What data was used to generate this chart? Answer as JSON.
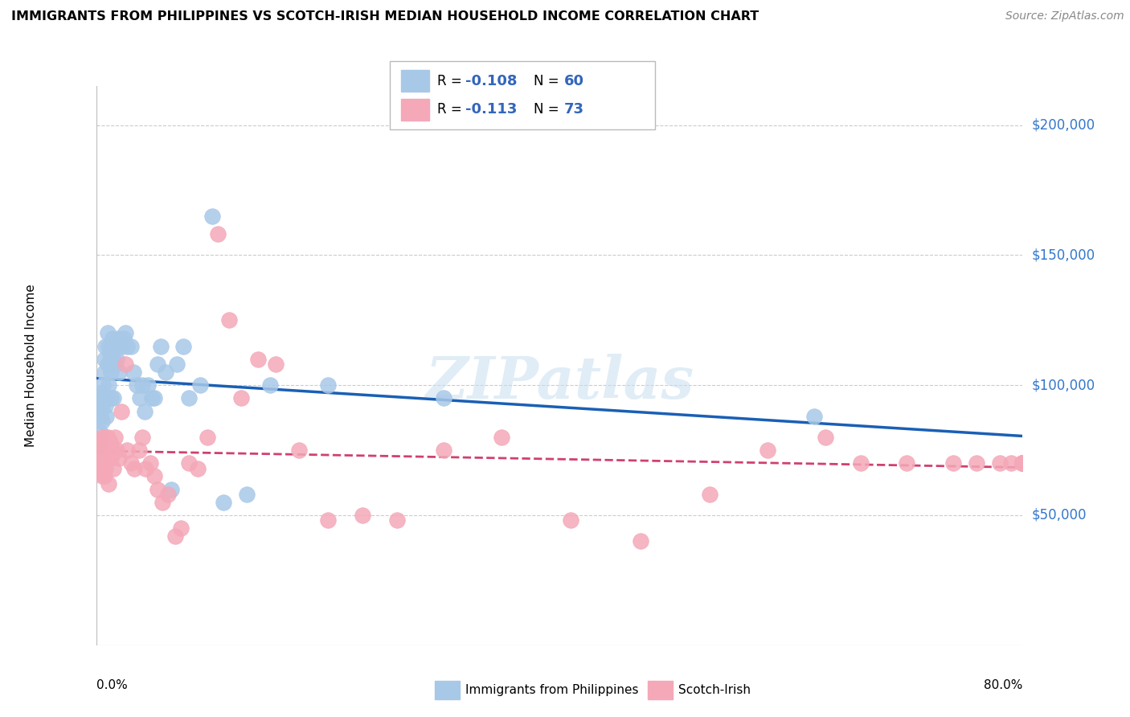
{
  "title": "IMMIGRANTS FROM PHILIPPINES VS SCOTCH-IRISH MEDIAN HOUSEHOLD INCOME CORRELATION CHART",
  "source": "Source: ZipAtlas.com",
  "ylabel": "Median Household Income",
  "xlim": [
    0.0,
    0.8
  ],
  "ylim": [
    0,
    215000
  ],
  "color_blue": "#a8c8e8",
  "color_pink": "#f4a8b8",
  "color_trend_blue": "#1a5fb5",
  "color_trend_pink": "#d04070",
  "watermark": "ZIPatlas",
  "yticks": [
    50000,
    100000,
    150000,
    200000
  ],
  "ytick_labels": [
    "$50,000",
    "$100,000",
    "$150,000",
    "$200,000"
  ],
  "philippines_x": [
    0.002,
    0.003,
    0.003,
    0.004,
    0.004,
    0.005,
    0.005,
    0.005,
    0.006,
    0.006,
    0.007,
    0.007,
    0.008,
    0.008,
    0.009,
    0.009,
    0.01,
    0.01,
    0.011,
    0.011,
    0.012,
    0.012,
    0.013,
    0.013,
    0.014,
    0.015,
    0.015,
    0.016,
    0.017,
    0.018,
    0.019,
    0.02,
    0.022,
    0.024,
    0.025,
    0.027,
    0.03,
    0.032,
    0.035,
    0.038,
    0.04,
    0.042,
    0.045,
    0.048,
    0.05,
    0.053,
    0.056,
    0.06,
    0.065,
    0.07,
    0.075,
    0.08,
    0.09,
    0.1,
    0.11,
    0.13,
    0.15,
    0.2,
    0.3,
    0.62
  ],
  "philippines_y": [
    95000,
    90000,
    82000,
    88000,
    78000,
    97000,
    92000,
    86000,
    100000,
    95000,
    110000,
    105000,
    92000,
    115000,
    88000,
    95000,
    120000,
    108000,
    115000,
    100000,
    108000,
    112000,
    105000,
    95000,
    118000,
    110000,
    95000,
    108000,
    115000,
    110000,
    118000,
    105000,
    115000,
    118000,
    120000,
    115000,
    115000,
    105000,
    100000,
    95000,
    100000,
    90000,
    100000,
    95000,
    95000,
    108000,
    115000,
    105000,
    60000,
    108000,
    115000,
    95000,
    100000,
    165000,
    55000,
    58000,
    100000,
    100000,
    95000,
    88000
  ],
  "scotch_x": [
    0.002,
    0.003,
    0.003,
    0.004,
    0.004,
    0.005,
    0.005,
    0.005,
    0.006,
    0.006,
    0.007,
    0.007,
    0.008,
    0.008,
    0.009,
    0.009,
    0.01,
    0.01,
    0.011,
    0.012,
    0.013,
    0.014,
    0.015,
    0.016,
    0.018,
    0.02,
    0.022,
    0.025,
    0.027,
    0.03,
    0.033,
    0.037,
    0.04,
    0.043,
    0.047,
    0.05,
    0.053,
    0.057,
    0.062,
    0.068,
    0.073,
    0.08,
    0.088,
    0.096,
    0.105,
    0.115,
    0.125,
    0.14,
    0.155,
    0.175,
    0.2,
    0.23,
    0.26,
    0.3,
    0.35,
    0.41,
    0.47,
    0.53,
    0.58,
    0.63,
    0.66,
    0.7,
    0.74,
    0.76,
    0.78,
    0.79,
    0.8,
    0.8,
    0.8,
    0.8,
    0.8,
    0.8,
    0.8
  ],
  "scotch_y": [
    78000,
    70000,
    75000,
    72000,
    68000,
    80000,
    75000,
    65000,
    70000,
    78000,
    72000,
    65000,
    75000,
    68000,
    72000,
    80000,
    75000,
    80000,
    62000,
    78000,
    72000,
    75000,
    68000,
    80000,
    75000,
    72000,
    90000,
    108000,
    75000,
    70000,
    68000,
    75000,
    80000,
    68000,
    70000,
    65000,
    60000,
    55000,
    58000,
    42000,
    45000,
    70000,
    68000,
    80000,
    158000,
    125000,
    95000,
    110000,
    108000,
    75000,
    48000,
    50000,
    48000,
    75000,
    80000,
    48000,
    40000,
    58000,
    75000,
    80000,
    70000,
    70000,
    70000,
    70000,
    70000,
    70000,
    70000,
    70000,
    70000,
    70000,
    70000,
    70000,
    70000
  ]
}
